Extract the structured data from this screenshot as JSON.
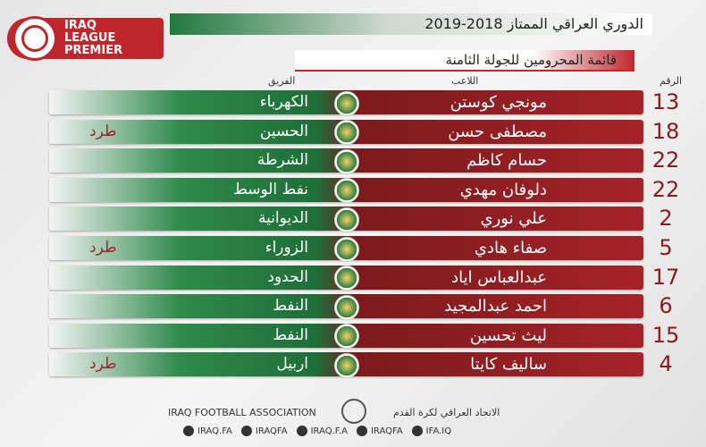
{
  "header": {
    "logo_lines": [
      "IRAQ",
      "LEAGUE",
      "PREMIER"
    ],
    "title": "الدوري العراقي الممتاز 2018-2019",
    "subtitle": "قائمة المحرومين للجولة الثامنة"
  },
  "table": {
    "columns": {
      "number": "الرقم",
      "player": "اللاعب",
      "team": "الفريق"
    },
    "rows": [
      {
        "number": "13",
        "player": "مونجي كوستن",
        "team": "الكهرباء"
      },
      {
        "number": "18",
        "player": "مصطفى حسن",
        "team": "الحسين",
        "note": "طرد"
      },
      {
        "number": "22",
        "player": "حسام كاظم",
        "team": "الشرطة"
      },
      {
        "number": "22",
        "player": "دلوفان مهدي",
        "team": "نفط الوسط"
      },
      {
        "number": "2",
        "player": "علي نوري",
        "team": "الديوانية"
      },
      {
        "number": "5",
        "player": "صفاء هادي",
        "team": "الزوراء",
        "note": "طرد"
      },
      {
        "number": "17",
        "player": "عبدالعباس اياد",
        "team": "الحدود"
      },
      {
        "number": "6",
        "player": "احمد عبدالمجيد",
        "team": "النفط"
      },
      {
        "number": "15",
        "player": "ليث تحسين",
        "team": "النفط"
      },
      {
        "number": "4",
        "player": "ساليف كايتا",
        "team": "اربيل",
        "note": "طرد"
      }
    ]
  },
  "footer": {
    "english": "IRAQ FOOTBALL ASSOCIATION",
    "arabic": "الاتحاد العراقي لكرة القدم",
    "socials": [
      "IRAQ.FA",
      "IRAQFA",
      "IRAQ.F.A",
      "IRAQFA",
      "IFA.IQ"
    ]
  }
}
